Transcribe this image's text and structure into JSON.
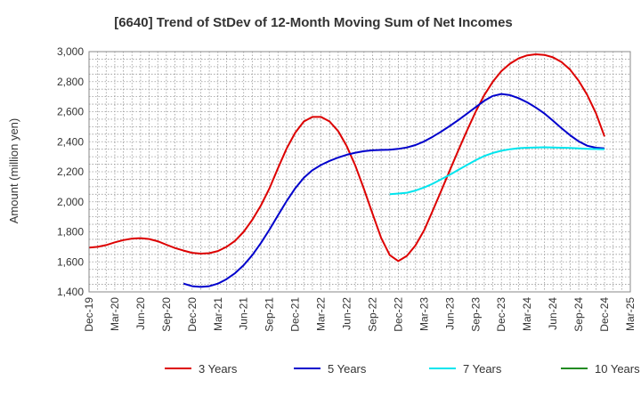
{
  "chart_data": {
    "type": "line",
    "title": "[6640]  Trend of StDev of 12-Month Moving Sum of Net Incomes",
    "xlabel": "",
    "ylabel": "Amount (million yen)",
    "x_ticks": [
      "Dec-19",
      "Mar-20",
      "Jun-20",
      "Sep-20",
      "Dec-20",
      "Mar-21",
      "Jun-21",
      "Sep-21",
      "Dec-21",
      "Mar-22",
      "Jun-22",
      "Sep-22",
      "Dec-22",
      "Mar-23",
      "Jun-23",
      "Sep-23",
      "Dec-23",
      "Mar-24",
      "Jun-24",
      "Sep-24",
      "Dec-24",
      "Mar-25"
    ],
    "y_ticks": [
      "1,400",
      "1,600",
      "1,800",
      "2,000",
      "2,200",
      "2,400",
      "2,600",
      "2,800",
      "3,000"
    ],
    "ylim": [
      1400,
      3000
    ],
    "grid": true,
    "legend_position": "bottom",
    "series": [
      {
        "name": "3 Years",
        "color": "#dd0000",
        "values": [
          [
            "2019-12",
            1695
          ],
          [
            "2020-01",
            1700
          ],
          [
            "2020-02",
            1712
          ],
          [
            "2020-03",
            1730
          ],
          [
            "2020-04",
            1745
          ],
          [
            "2020-05",
            1755
          ],
          [
            "2020-06",
            1758
          ],
          [
            "2020-07",
            1752
          ],
          [
            "2020-08",
            1737
          ],
          [
            "2020-09",
            1714
          ],
          [
            "2020-10",
            1692
          ],
          [
            "2020-11",
            1675
          ],
          [
            "2020-12",
            1660
          ],
          [
            "2021-01",
            1655
          ],
          [
            "2021-02",
            1658
          ],
          [
            "2021-03",
            1672
          ],
          [
            "2021-04",
            1700
          ],
          [
            "2021-05",
            1740
          ],
          [
            "2021-06",
            1800
          ],
          [
            "2021-07",
            1880
          ],
          [
            "2021-08",
            1975
          ],
          [
            "2021-09",
            2090
          ],
          [
            "2021-10",
            2225
          ],
          [
            "2021-11",
            2355
          ],
          [
            "2021-12",
            2460
          ],
          [
            "2022-01",
            2535
          ],
          [
            "2022-02",
            2565
          ],
          [
            "2022-03",
            2565
          ],
          [
            "2022-04",
            2535
          ],
          [
            "2022-05",
            2470
          ],
          [
            "2022-06",
            2370
          ],
          [
            "2022-07",
            2240
          ],
          [
            "2022-08",
            2085
          ],
          [
            "2022-09",
            1920
          ],
          [
            "2022-10",
            1760
          ],
          [
            "2022-11",
            1645
          ],
          [
            "2022-12",
            1605
          ],
          [
            "2023-01",
            1640
          ],
          [
            "2023-02",
            1710
          ],
          [
            "2023-03",
            1810
          ],
          [
            "2023-04",
            1940
          ],
          [
            "2023-05",
            2075
          ],
          [
            "2023-06",
            2210
          ],
          [
            "2023-07",
            2345
          ],
          [
            "2023-08",
            2475
          ],
          [
            "2023-09",
            2600
          ],
          [
            "2023-10",
            2710
          ],
          [
            "2023-11",
            2800
          ],
          [
            "2023-12",
            2870
          ],
          [
            "2024-01",
            2920
          ],
          [
            "2024-02",
            2955
          ],
          [
            "2024-03",
            2975
          ],
          [
            "2024-04",
            2982
          ],
          [
            "2024-05",
            2978
          ],
          [
            "2024-06",
            2962
          ],
          [
            "2024-07",
            2930
          ],
          [
            "2024-08",
            2880
          ],
          [
            "2024-09",
            2805
          ],
          [
            "2024-10",
            2710
          ],
          [
            "2024-11",
            2590
          ],
          [
            "2024-12",
            2435
          ]
        ]
      },
      {
        "name": "5 Years",
        "color": "#0000cc",
        "values": [
          [
            "2020-11",
            1455
          ],
          [
            "2020-12",
            1438
          ],
          [
            "2021-01",
            1433
          ],
          [
            "2021-02",
            1438
          ],
          [
            "2021-03",
            1455
          ],
          [
            "2021-04",
            1485
          ],
          [
            "2021-05",
            1525
          ],
          [
            "2021-06",
            1578
          ],
          [
            "2021-07",
            1645
          ],
          [
            "2021-08",
            1725
          ],
          [
            "2021-09",
            1815
          ],
          [
            "2021-10",
            1910
          ],
          [
            "2021-11",
            2005
          ],
          [
            "2021-12",
            2090
          ],
          [
            "2022-01",
            2160
          ],
          [
            "2022-02",
            2210
          ],
          [
            "2022-03",
            2245
          ],
          [
            "2022-04",
            2272
          ],
          [
            "2022-05",
            2295
          ],
          [
            "2022-06",
            2313
          ],
          [
            "2022-07",
            2327
          ],
          [
            "2022-08",
            2337
          ],
          [
            "2022-09",
            2343
          ],
          [
            "2022-10",
            2345
          ],
          [
            "2022-11",
            2347
          ],
          [
            "2022-12",
            2352
          ],
          [
            "2023-01",
            2362
          ],
          [
            "2023-02",
            2378
          ],
          [
            "2023-03",
            2402
          ],
          [
            "2023-04",
            2433
          ],
          [
            "2023-05",
            2468
          ],
          [
            "2023-06",
            2505
          ],
          [
            "2023-07",
            2545
          ],
          [
            "2023-08",
            2587
          ],
          [
            "2023-09",
            2630
          ],
          [
            "2023-10",
            2672
          ],
          [
            "2023-11",
            2705
          ],
          [
            "2023-12",
            2718
          ],
          [
            "2024-01",
            2710
          ],
          [
            "2024-02",
            2690
          ],
          [
            "2024-03",
            2662
          ],
          [
            "2024-04",
            2628
          ],
          [
            "2024-05",
            2588
          ],
          [
            "2024-06",
            2540
          ],
          [
            "2024-07",
            2490
          ],
          [
            "2024-08",
            2443
          ],
          [
            "2024-09",
            2402
          ],
          [
            "2024-10",
            2373
          ],
          [
            "2024-11",
            2360
          ],
          [
            "2024-12",
            2355
          ]
        ]
      },
      {
        "name": "7 Years",
        "color": "#00e5ee",
        "values": [
          [
            "2022-11",
            2050
          ],
          [
            "2022-12",
            2055
          ],
          [
            "2023-01",
            2060
          ],
          [
            "2023-02",
            2075
          ],
          [
            "2023-03",
            2095
          ],
          [
            "2023-04",
            2120
          ],
          [
            "2023-05",
            2150
          ],
          [
            "2023-06",
            2180
          ],
          [
            "2023-07",
            2213
          ],
          [
            "2023-08",
            2245
          ],
          [
            "2023-09",
            2277
          ],
          [
            "2023-10",
            2305
          ],
          [
            "2023-11",
            2325
          ],
          [
            "2023-12",
            2340
          ],
          [
            "2024-01",
            2350
          ],
          [
            "2024-02",
            2357
          ],
          [
            "2024-03",
            2360
          ],
          [
            "2024-04",
            2362
          ],
          [
            "2024-05",
            2363
          ],
          [
            "2024-06",
            2362
          ],
          [
            "2024-07",
            2360
          ],
          [
            "2024-08",
            2358
          ],
          [
            "2024-09",
            2355
          ],
          [
            "2024-10",
            2353
          ],
          [
            "2024-11",
            2351
          ],
          [
            "2024-12",
            2350
          ]
        ]
      },
      {
        "name": "10 Years",
        "color": "#228b22",
        "values": []
      }
    ]
  }
}
